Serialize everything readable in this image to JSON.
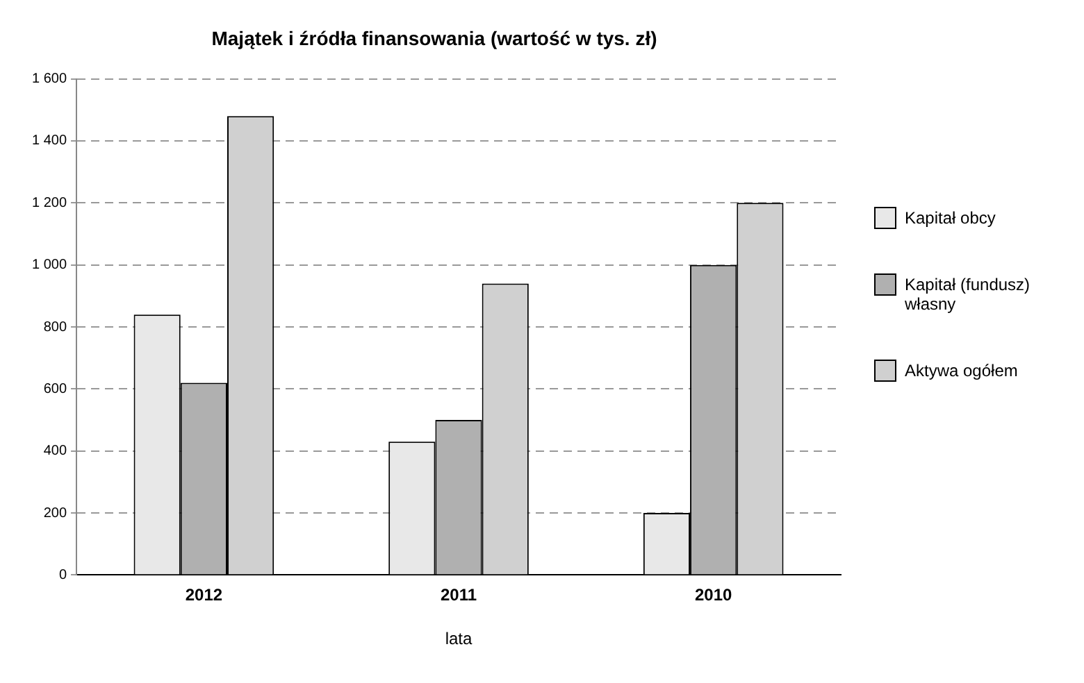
{
  "chart_data": {
    "type": "bar",
    "title": "Majątek i źródła finansowania (wartość w tys. zł)",
    "xlabel": "lata",
    "categories": [
      "2012",
      "2011",
      "2010"
    ],
    "series": [
      {
        "name": "Kapitał obcy",
        "color": "#e8e8e8",
        "values": [
          840,
          430,
          200
        ]
      },
      {
        "name": "Kapitał (fundusz) własny",
        "color": "#b0b0b0",
        "values": [
          620,
          500,
          1000
        ]
      },
      {
        "name": "Aktywa ogółem",
        "color": "#d0d0d0",
        "values": [
          1480,
          940,
          1200
        ]
      }
    ],
    "ylim": [
      0,
      1600
    ],
    "yticks": [
      0,
      200,
      400,
      600,
      800,
      {
        "value": 1000,
        "label": "1 000"
      },
      {
        "value": 1200,
        "label": "1 200"
      },
      {
        "value": 1400,
        "label": "1 400"
      },
      {
        "value": 1600,
        "label": "1 600"
      }
    ],
    "grid": "y",
    "legend": "right"
  }
}
